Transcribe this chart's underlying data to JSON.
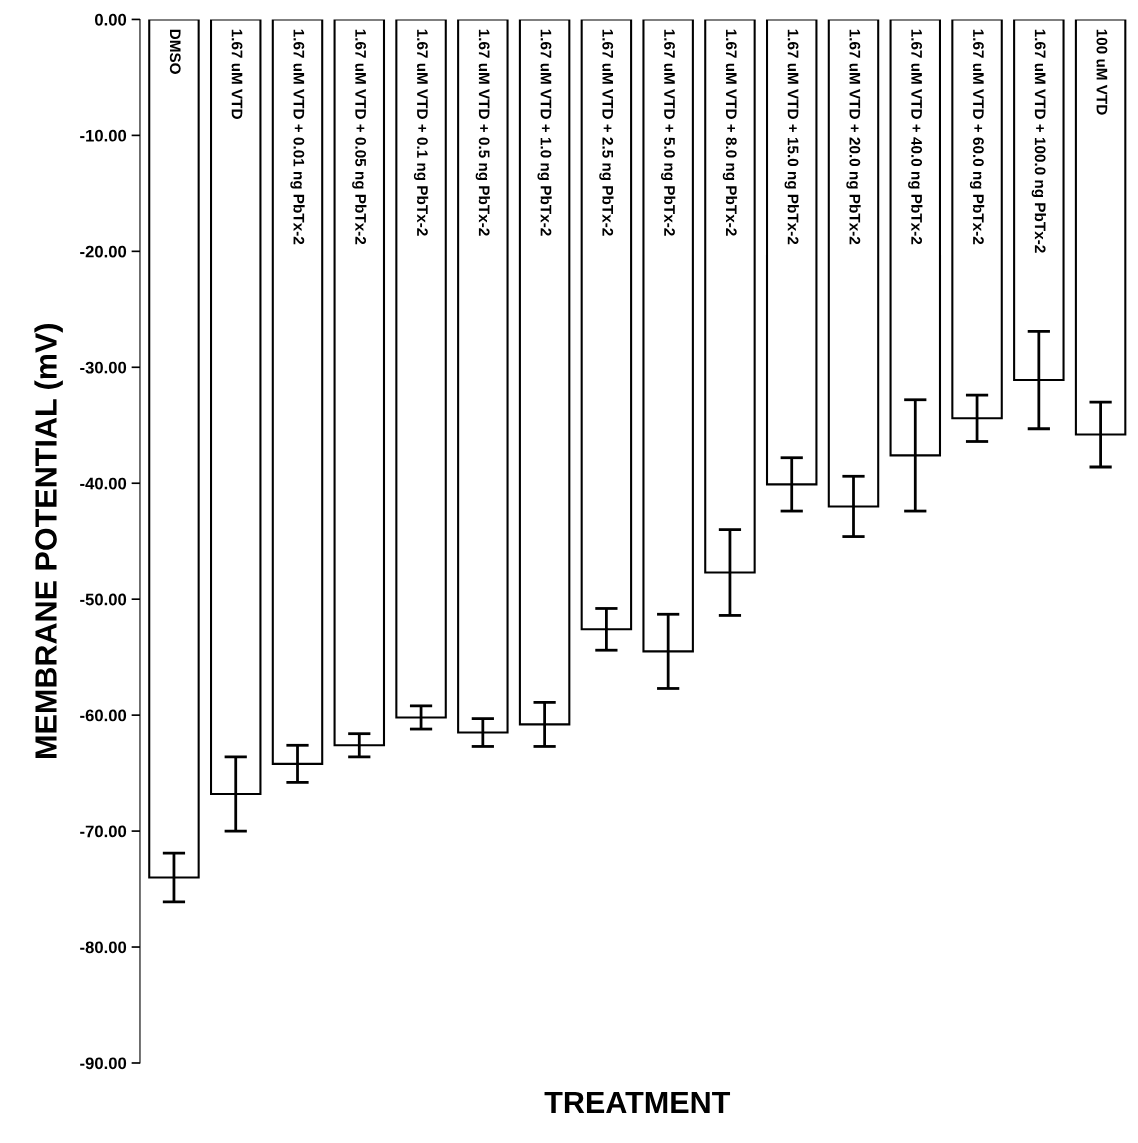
{
  "chart_data": {
    "type": "bar",
    "xlabel": "TREATMENT",
    "ylabel": "MEMBRANE POTENTIAL (mV)",
    "categories": [
      "DMSO",
      "1.67 uM VTD",
      "1.67 uM VTD + 0.01 ng PbTx-2",
      "1.67 uM VTD + 0.05 ng PbTx-2",
      "1.67 uM VTD + 0.1 ng PbTx-2",
      "1.67 uM VTD + 0.5 ng PbTx-2",
      "1.67 uM VTD + 1.0 ng PbTx-2",
      "1.67 uM VTD + 2.5 ng PbTx-2",
      "1.67 uM VTD + 5.0 ng PbTx-2",
      "1.67 uM VTD + 8.0 ng PbTx-2",
      "1.67 uM VTD + 15.0 ng PbTx-2",
      "1.67 uM VTD + 20.0 ng PbTx-2",
      "1.67 uM VTD + 40.0 ng PbTx-2",
      "1.67 uM VTD + 60.0 ng PbTx-2",
      "1.67 uM VTD + 100.0 ng PbTx-2",
      "100 uM VTD"
    ],
    "values": [
      -74.0,
      -66.8,
      -64.2,
      -62.6,
      -60.2,
      -61.5,
      -60.8,
      -52.6,
      -54.5,
      -47.7,
      -40.1,
      -42.0,
      -37.6,
      -34.4,
      -31.1,
      -35.8
    ],
    "errors": [
      2.1,
      3.2,
      1.6,
      1.0,
      1.0,
      1.2,
      1.9,
      1.8,
      3.2,
      3.7,
      2.3,
      2.6,
      4.8,
      2.0,
      4.2,
      2.8
    ],
    "color": "#ffffff",
    "ylim": [
      -90,
      0
    ],
    "yticks": [
      {
        "value": 0,
        "label": "0.00"
      },
      {
        "value": -10,
        "label": "-10.00"
      },
      {
        "value": -20,
        "label": "-20.00"
      },
      {
        "value": -30,
        "label": "-30.00"
      },
      {
        "value": -40,
        "label": "-40.00"
      },
      {
        "value": -50,
        "label": "-50.00"
      },
      {
        "value": -60,
        "label": "-60.00"
      },
      {
        "value": -70,
        "label": "-70.00"
      },
      {
        "value": -80,
        "label": "-80.00"
      },
      {
        "value": -90,
        "label": "-90.00"
      }
    ],
    "grid": false,
    "legend": false
  }
}
